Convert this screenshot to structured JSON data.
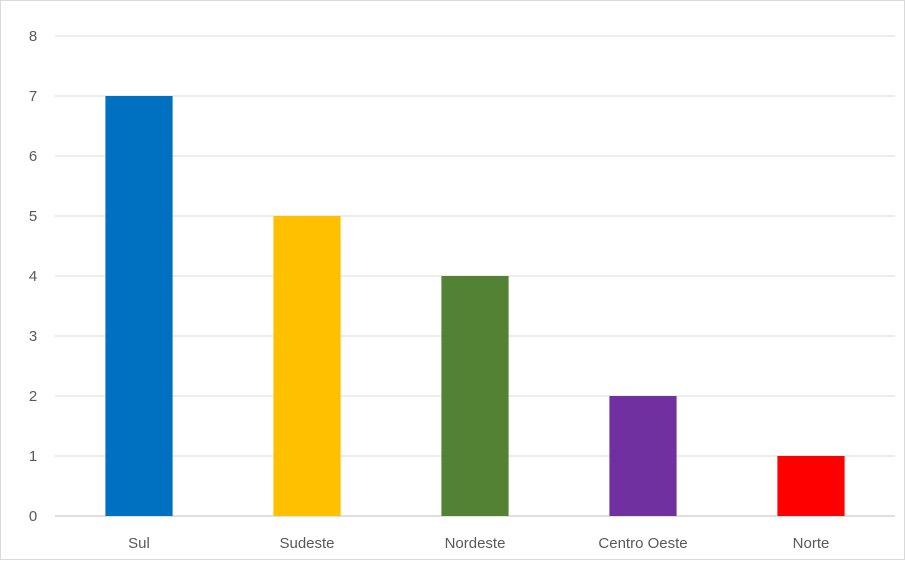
{
  "chart_data": {
    "type": "bar",
    "categories": [
      "Sul",
      "Sudeste",
      "Nordeste",
      "Centro Oeste",
      "Norte"
    ],
    "values": [
      7,
      5,
      4,
      2,
      1
    ],
    "colors": [
      "#0070c0",
      "#ffc000",
      "#548235",
      "#7030a0",
      "#ff0000"
    ],
    "ylim": [
      0,
      8
    ],
    "yticks": [
      "0",
      "1",
      "2",
      "3",
      "4",
      "5",
      "6",
      "7",
      "8"
    ],
    "grid": true,
    "legend": "none"
  }
}
